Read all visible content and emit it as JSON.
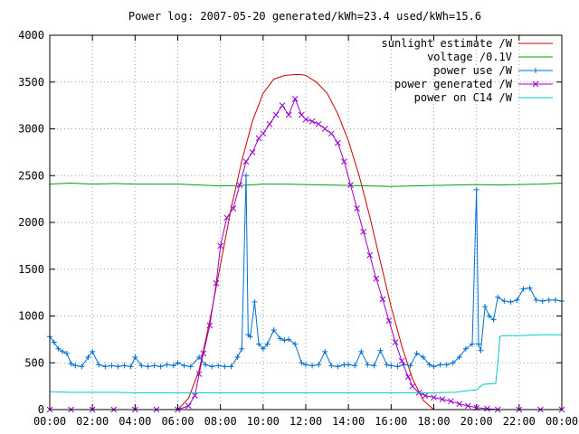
{
  "chart_data": {
    "type": "line",
    "title": "Power log: 2007-05-20 generated/kWh=23.4 used/kWh=15.6",
    "xlabel": "",
    "ylabel": "",
    "xlim": [
      0,
      24
    ],
    "ylim": [
      0,
      4000
    ],
    "grid": true,
    "legend_position": "top-right",
    "x_ticks": [
      "00:00",
      "02:00",
      "04:00",
      "06:00",
      "08:00",
      "10:00",
      "12:00",
      "14:00",
      "16:00",
      "18:00",
      "20:00",
      "22:00",
      "00:00"
    ],
    "y_ticks": [
      "0",
      "500",
      "1000",
      "1500",
      "2000",
      "2500",
      "3000",
      "3500",
      "4000"
    ],
    "series": [
      {
        "name": "sunlight estimate /W",
        "color": "#cc0000",
        "marker": "none",
        "x": [
          6.0,
          6.5,
          7.0,
          7.5,
          8.0,
          8.5,
          9.0,
          9.5,
          10.0,
          10.5,
          11.0,
          11.5,
          11.8,
          12.0,
          12.5,
          13.0,
          13.5,
          14.0,
          14.5,
          15.0,
          15.5,
          16.0,
          16.5,
          17.0,
          17.5,
          18.0
        ],
        "y": [
          0,
          120,
          420,
          950,
          1550,
          2150,
          2660,
          3080,
          3380,
          3530,
          3570,
          3580,
          3580,
          3570,
          3500,
          3380,
          3160,
          2870,
          2500,
          2060,
          1580,
          1100,
          680,
          330,
          100,
          0
        ]
      },
      {
        "name": "voltage /0.1V",
        "color": "#00a000",
        "marker": "none",
        "x": [
          0.0,
          1.0,
          2.0,
          3.0,
          4.0,
          5.0,
          6.0,
          7.0,
          8.0,
          9.0,
          10.0,
          11.0,
          12.0,
          13.0,
          14.0,
          15.0,
          16.0,
          17.0,
          18.0,
          19.0,
          20.0,
          21.0,
          22.0,
          23.0,
          24.0
        ],
        "y": [
          2410,
          2420,
          2410,
          2415,
          2410,
          2410,
          2410,
          2400,
          2390,
          2395,
          2410,
          2410,
          2405,
          2400,
          2395,
          2390,
          2385,
          2390,
          2395,
          2400,
          2405,
          2400,
          2405,
          2410,
          2420
        ]
      },
      {
        "name": "power use /W",
        "color": "#0070d0",
        "marker": "plus",
        "x": [
          0.0,
          0.2,
          0.4,
          0.6,
          0.8,
          1.0,
          1.2,
          1.5,
          1.8,
          2.0,
          2.3,
          2.6,
          2.9,
          3.2,
          3.5,
          3.8,
          4.0,
          4.3,
          4.6,
          4.9,
          5.2,
          5.5,
          5.8,
          6.0,
          6.3,
          6.6,
          7.0,
          7.3,
          7.6,
          7.9,
          8.2,
          8.5,
          8.8,
          9.0,
          9.2,
          9.3,
          9.4,
          9.6,
          9.8,
          10.0,
          10.2,
          10.5,
          10.8,
          11.0,
          11.2,
          11.5,
          11.8,
          12.0,
          12.3,
          12.6,
          12.9,
          13.2,
          13.5,
          13.8,
          14.0,
          14.3,
          14.6,
          14.9,
          15.2,
          15.5,
          15.8,
          16.0,
          16.3,
          16.6,
          16.9,
          17.2,
          17.5,
          17.8,
          18.0,
          18.3,
          18.6,
          18.9,
          19.2,
          19.5,
          19.8,
          20.0,
          20.1,
          20.2,
          20.4,
          20.6,
          20.8,
          21.0,
          21.3,
          21.6,
          21.9,
          22.2,
          22.5,
          22.8,
          23.1,
          23.4,
          23.7,
          24.0
        ],
        "y": [
          780,
          720,
          650,
          620,
          600,
          490,
          470,
          460,
          560,
          620,
          480,
          460,
          470,
          460,
          470,
          460,
          560,
          470,
          460,
          470,
          460,
          480,
          470,
          500,
          470,
          460,
          560,
          480,
          460,
          470,
          460,
          460,
          560,
          650,
          2500,
          800,
          780,
          1150,
          700,
          650,
          700,
          850,
          760,
          740,
          750,
          700,
          500,
          480,
          470,
          480,
          620,
          470,
          460,
          480,
          480,
          470,
          620,
          480,
          470,
          630,
          480,
          470,
          460,
          480,
          470,
          600,
          560,
          480,
          460,
          480,
          480,
          500,
          560,
          650,
          700,
          2350,
          700,
          630,
          1100,
          1000,
          960,
          1200,
          1160,
          1150,
          1170,
          1290,
          1300,
          1170,
          1160,
          1170,
          1170,
          1160
        ]
      },
      {
        "name": "power generated /W",
        "color": "#9900cc",
        "marker": "cross",
        "x": [
          0.0,
          1.0,
          2.0,
          3.0,
          4.0,
          5.0,
          6.0,
          6.5,
          6.8,
          7.0,
          7.2,
          7.5,
          7.8,
          8.0,
          8.3,
          8.6,
          8.9,
          9.2,
          9.5,
          9.8,
          10.0,
          10.3,
          10.6,
          10.9,
          11.2,
          11.5,
          11.8,
          12.0,
          12.3,
          12.6,
          12.9,
          13.2,
          13.5,
          13.8,
          14.1,
          14.4,
          14.7,
          15.0,
          15.3,
          15.6,
          15.9,
          16.2,
          16.5,
          16.8,
          17.0,
          17.3,
          17.6,
          18.0,
          18.4,
          18.8,
          19.2,
          19.6,
          20.0,
          20.5,
          21.0,
          22.0,
          23.0,
          24.0
        ],
        "y": [
          0,
          0,
          0,
          0,
          0,
          0,
          0,
          40,
          150,
          380,
          600,
          900,
          1350,
          1750,
          2050,
          2150,
          2400,
          2650,
          2750,
          2900,
          2950,
          3050,
          3150,
          3250,
          3150,
          3320,
          3150,
          3100,
          3080,
          3050,
          3000,
          2950,
          2850,
          2650,
          2400,
          2150,
          1900,
          1650,
          1400,
          1180,
          950,
          720,
          520,
          350,
          250,
          180,
          150,
          130,
          110,
          90,
          60,
          40,
          20,
          10,
          0,
          0,
          0,
          0
        ]
      },
      {
        "name": "power on C14 /W",
        "color": "#00c8c8",
        "marker": "none",
        "x": [
          0.0,
          1.0,
          2.0,
          3.0,
          4.0,
          5.0,
          6.0,
          7.0,
          8.0,
          9.0,
          10.0,
          11.0,
          12.0,
          13.0,
          14.0,
          15.0,
          16.0,
          17.0,
          18.0,
          19.0,
          19.5,
          20.0,
          20.3,
          20.9,
          21.0,
          21.1,
          21.2,
          22.0,
          23.0,
          24.0
        ],
        "y": [
          190,
          185,
          185,
          185,
          180,
          180,
          180,
          180,
          180,
          180,
          180,
          180,
          180,
          180,
          180,
          180,
          180,
          180,
          180,
          185,
          200,
          210,
          270,
          280,
          500,
          780,
          790,
          790,
          800,
          800
        ]
      }
    ]
  }
}
